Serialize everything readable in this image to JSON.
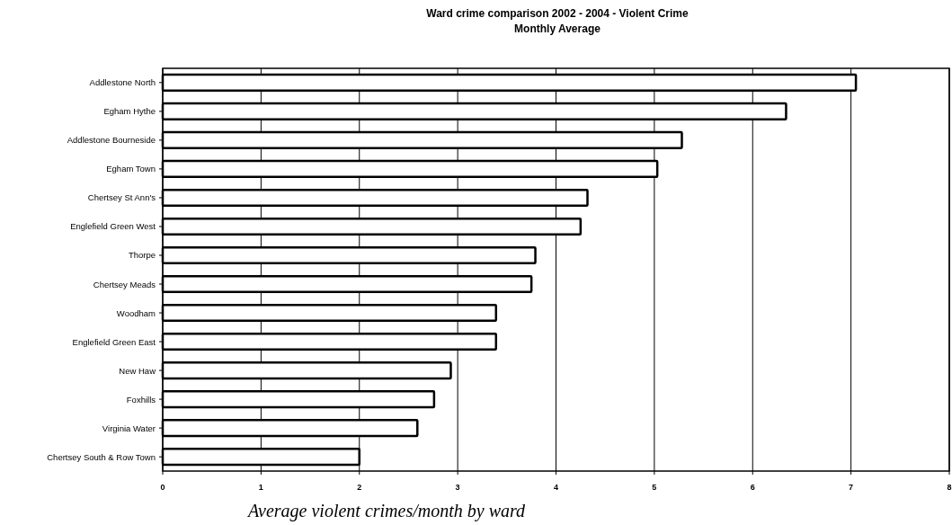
{
  "chart_data": {
    "type": "bar",
    "orientation": "horizontal",
    "title": "Ward crime comparison 2002 - 2004 - Violent Crime",
    "subtitle": "Monthly Average",
    "categories": [
      "Addlestone North",
      "Egham Hythe",
      "Addlestone Bourneside",
      "Egham Town",
      "Chertsey St Ann's",
      "Englefield Green West",
      "Thorpe",
      "Chertsey Meads",
      "Woodham",
      "Englefield Green East",
      "New Haw",
      "Foxhills",
      "Virginia Water",
      "Chertsey South & Row Town"
    ],
    "values": [
      7.05,
      6.34,
      5.28,
      5.03,
      4.32,
      4.25,
      3.79,
      3.75,
      3.39,
      3.39,
      2.93,
      2.76,
      2.59,
      2.0
    ],
    "color": "#ffffff",
    "xlim": [
      0,
      8
    ],
    "xticks": [
      0,
      1,
      2,
      3,
      4,
      5,
      6,
      7,
      8
    ],
    "grid": "x",
    "annotations": [
      "Average violent crimes/month by ward"
    ]
  }
}
